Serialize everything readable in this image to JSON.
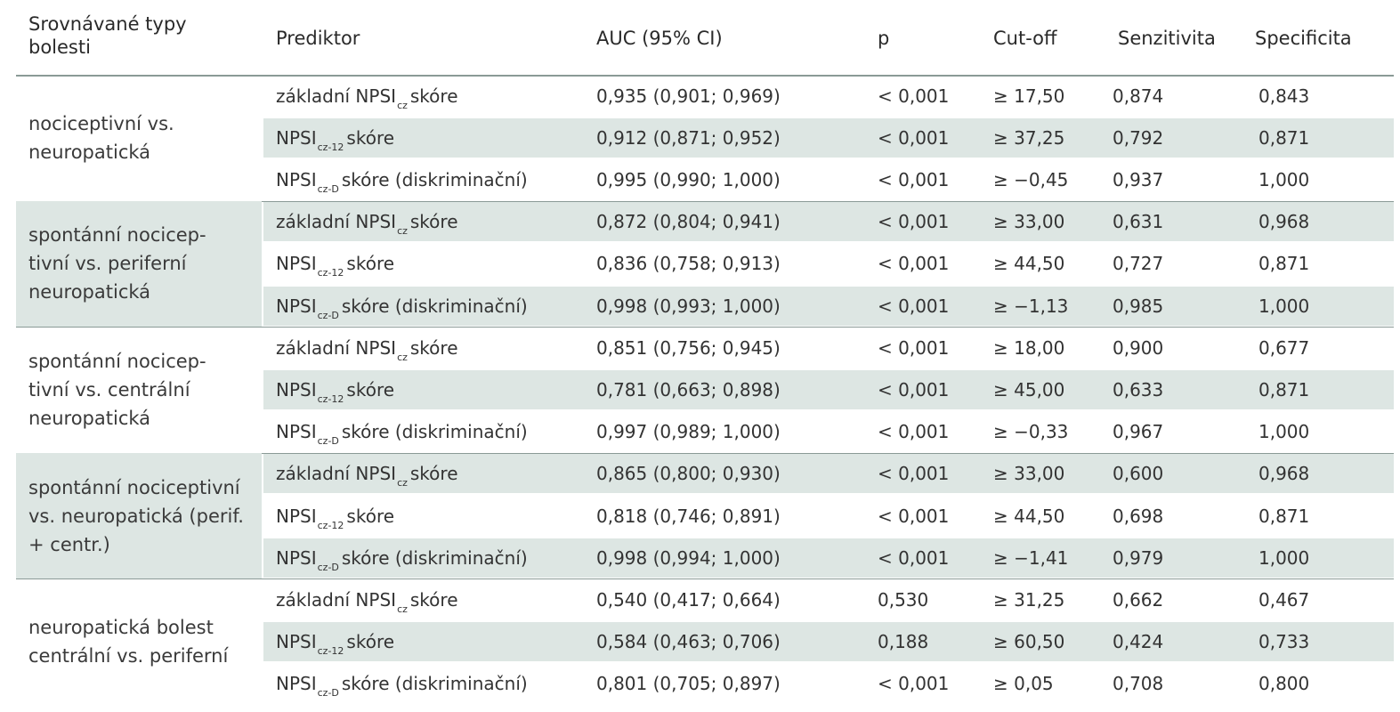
{
  "headers": {
    "group": "Srovnávané typy\nbolesti",
    "predictor": "Prediktor",
    "auc": "AUC (95% CI)",
    "p": "p",
    "cutoff": "Cut-off",
    "sens": "Senzitivita",
    "spec": "Specificita"
  },
  "predictor_labels": {
    "base": {
      "main": "základní NPSI",
      "sub": "cz",
      "rest": "skóre"
    },
    "p12": {
      "main": "NPSI",
      "sub": "cz-12",
      "rest": "skóre"
    },
    "disc": {
      "main": "NPSI",
      "sub": "cz-D",
      "rest": "skóre (diskriminační)"
    }
  },
  "groups": [
    {
      "label": "nociceptivní vs.\nneuropatická",
      "rows": [
        {
          "auc": "0,935 (0,901; 0,969)",
          "p": "< 0,001",
          "cutoff": "≥ 17,50",
          "sens": "0,874",
          "spec": "0,843"
        },
        {
          "auc": "0,912 (0,871; 0,952)",
          "p": "< 0,001",
          "cutoff": "≥ 37,25",
          "sens": "0,792",
          "spec": "0,871"
        },
        {
          "auc": "0,995 (0,990; 1,000)",
          "p": "< 0,001",
          "cutoff": "≥ −0,45",
          "sens": "0,937",
          "spec": "1,000"
        }
      ]
    },
    {
      "label": "spontánní nocicep-\ntivní vs. periferní\nneuropatická",
      "rows": [
        {
          "auc": "0,872 (0,804; 0,941)",
          "p": "< 0,001",
          "cutoff": "≥ 33,00",
          "sens": "0,631",
          "spec": "0,968"
        },
        {
          "auc": "0,836 (0,758; 0,913)",
          "p": "< 0,001",
          "cutoff": "≥ 44,50",
          "sens": "0,727",
          "spec": "0,871"
        },
        {
          "auc": "0,998 (0,993; 1,000)",
          "p": "< 0,001",
          "cutoff": "≥ −1,13",
          "sens": "0,985",
          "spec": "1,000"
        }
      ]
    },
    {
      "label": "spontánní nocicep-\ntivní vs. centrální\nneuropatická",
      "rows": [
        {
          "auc": "0,851 (0,756; 0,945)",
          "p": "< 0,001",
          "cutoff": "≥ 18,00",
          "sens": "0,900",
          "spec": "0,677"
        },
        {
          "auc": "0,781 (0,663; 0,898)",
          "p": "< 0,001",
          "cutoff": "≥ 45,00",
          "sens": "0,633",
          "spec": "0,871"
        },
        {
          "auc": "0,997 (0,989; 1,000)",
          "p": "< 0,001",
          "cutoff": "≥ −0,33",
          "sens": "0,967",
          "spec": "1,000"
        }
      ]
    },
    {
      "label": "spontánní nociceptivní\nvs. neuropatická (perif.\n+ centr.)",
      "rows": [
        {
          "auc": "0,865 (0,800; 0,930)",
          "p": "< 0,001",
          "cutoff": "≥ 33,00",
          "sens": "0,600",
          "spec": "0,968"
        },
        {
          "auc": "0,818 (0,746; 0,891)",
          "p": "< 0,001",
          "cutoff": "≥ 44,50",
          "sens": "0,698",
          "spec": "0,871"
        },
        {
          "auc": "0,998 (0,994; 1,000)",
          "p": "< 0,001",
          "cutoff": "≥ −1,41",
          "sens": "0,979",
          "spec": "1,000"
        }
      ]
    },
    {
      "label": "neuropatická bolest\ncentrální vs. periferní",
      "rows": [
        {
          "auc": "0,540 (0,417; 0,664)",
          "p": "0,530",
          "cutoff": "≥ 31,25",
          "sens": "0,662",
          "spec": "0,467"
        },
        {
          "auc": "0,584 (0,463; 0,706)",
          "p": "0,188",
          "cutoff": "≥ 60,50",
          "sens": "0,424",
          "spec": "0,733"
        },
        {
          "auc": "0,801 (0,705; 0,897)",
          "p": "< 0,001",
          "cutoff": "≥ 0,05",
          "sens": "0,708",
          "spec": "0,800"
        }
      ]
    }
  ],
  "colors": {
    "shade": "#dde6e3",
    "rule": "#8a9a96",
    "text": "#333333"
  }
}
